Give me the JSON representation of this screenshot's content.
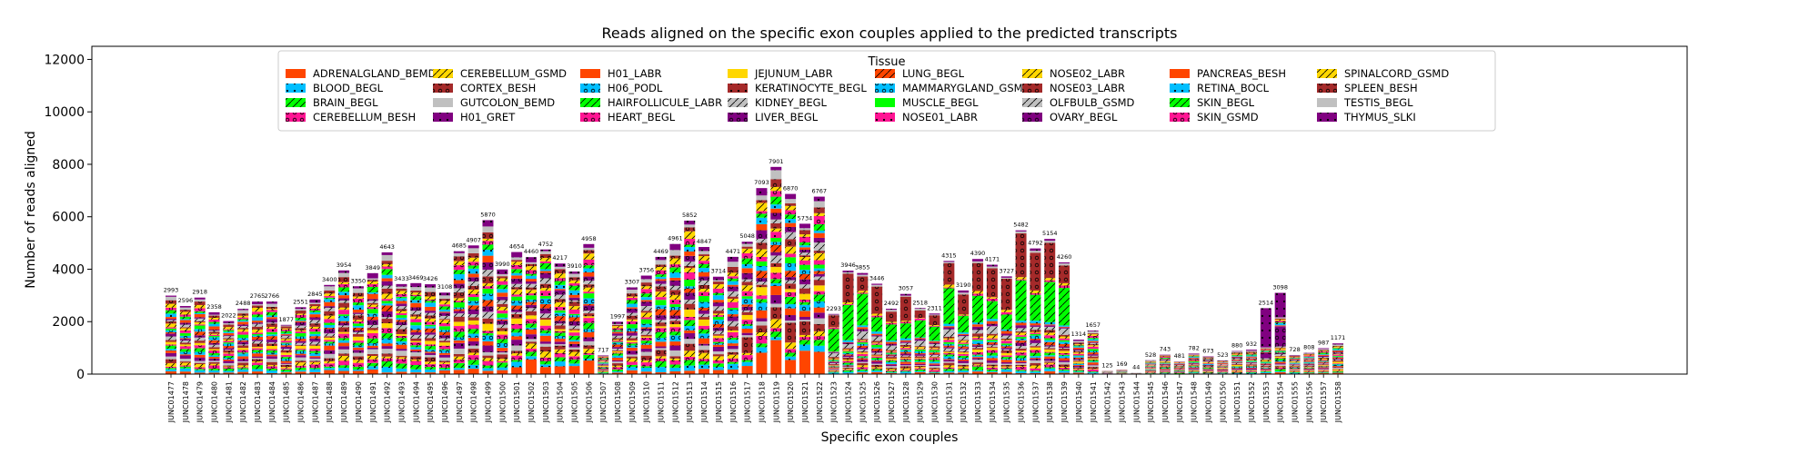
{
  "chart_data": {
    "type": "bar",
    "stacked": true,
    "title": "Reads aligned on the specific exon couples applied to the predicted transcripts",
    "xlabel": "Specific exon couples",
    "ylabel": "Number of reads aligned",
    "ylim": [
      0,
      12500
    ],
    "yticks": [
      0,
      2000,
      4000,
      6000,
      8000,
      10000,
      12000
    ],
    "legend_title": "Tissue",
    "legend_position": "top-center",
    "categories": [
      "JUNC01477",
      "JUNC01478",
      "JUNC01479",
      "JUNC01480",
      "JUNC01481",
      "JUNC01482",
      "JUNC01483",
      "JUNC01484",
      "JUNC01485",
      "JUNC01486",
      "JUNC01487",
      "JUNC01488",
      "JUNC01489",
      "JUNC01490",
      "JUNC01491",
      "JUNC01492",
      "JUNC01493",
      "JUNC01494",
      "JUNC01495",
      "JUNC01496",
      "JUNC01497",
      "JUNC01498",
      "JUNC01499",
      "JUNC01500",
      "JUNC01501",
      "JUNC01502",
      "JUNC01503",
      "JUNC01504",
      "JUNC01505",
      "JUNC01506",
      "JUNC01507",
      "JUNC01508",
      "JUNC01509",
      "JUNC01510",
      "JUNC01511",
      "JUNC01512",
      "JUNC01513",
      "JUNC01514",
      "JUNC01515",
      "JUNC01516",
      "JUNC01517",
      "JUNC01518",
      "JUNC01519",
      "JUNC01520",
      "JUNC01521",
      "JUNC01522",
      "JUNC01523",
      "JUNC01524",
      "JUNC01525",
      "JUNC01526",
      "JUNC01527",
      "JUNC01528",
      "JUNC01529",
      "JUNC01530",
      "JUNC01531",
      "JUNC01532",
      "JUNC01533",
      "JUNC01534",
      "JUNC01535",
      "JUNC01536",
      "JUNC01537",
      "JUNC01538",
      "JUNC01539",
      "JUNC01540",
      "JUNC01541",
      "JUNC01542",
      "JUNC01543",
      "JUNC01544",
      "JUNC01545",
      "JUNC01546",
      "JUNC01547",
      "JUNC01548",
      "JUNC01549",
      "JUNC01550",
      "JUNC01551",
      "JUNC01552",
      "JUNC01553",
      "JUNC01554",
      "JUNC01555",
      "JUNC01556",
      "JUNC01557",
      "JUNC01558"
    ],
    "totals": [
      2993,
      2596,
      2918,
      2358,
      2022,
      2488,
      2765,
      2766,
      1877,
      2551,
      2845,
      3400,
      3954,
      3350,
      3849,
      4643,
      3433,
      3469,
      3426,
      3108,
      4685,
      4907,
      5870,
      3990,
      4654,
      4460,
      4752,
      4217,
      3910,
      4958,
      717,
      1997,
      3307,
      3756,
      4469,
      4961,
      5852,
      4847,
      3714,
      4471,
      5048,
      7093,
      7901,
      6870,
      5734,
      6767,
      2293,
      3946,
      3855,
      3446,
      2492,
      3057,
      2518,
      2311,
      4315,
      3190,
      4390,
      4171,
      3727,
      5482,
      4792,
      5154,
      4260,
      1314,
      1657,
      125,
      169,
      44,
      528,
      743,
      481,
      782,
      673,
      523,
      880,
      932,
      2514,
      3098,
      728,
      808,
      987,
      1171
    ],
    "series": [
      {
        "name": "ADRENALGLAND_BEMD",
        "color": "#ff4500",
        "hatch": ""
      },
      {
        "name": "BLOOD_BEGL",
        "color": "#00bfff",
        "hatch": "dot"
      },
      {
        "name": "BRAIN_BEGL",
        "color": "#00ff00",
        "hatch": "slash"
      },
      {
        "name": "CEREBELLUM_BESH",
        "color": "#ff1493",
        "hatch": "ring"
      },
      {
        "name": "CEREBELLUM_GSMD",
        "color": "#ffd700",
        "hatch": "slash"
      },
      {
        "name": "CORTEX_BESH",
        "color": "#a52a2a",
        "hatch": "ring"
      },
      {
        "name": "GUTCOLON_BEMD",
        "color": "#c0c0c0",
        "hatch": ""
      },
      {
        "name": "H01_GRET",
        "color": "#800080",
        "hatch": "dot"
      },
      {
        "name": "H01_LABR",
        "color": "#ff4500",
        "hatch": ""
      },
      {
        "name": "H06_PODL",
        "color": "#00bfff",
        "hatch": "ring"
      },
      {
        "name": "HAIRFOLLICULE_LABR",
        "color": "#00ff00",
        "hatch": "slash"
      },
      {
        "name": "HEART_BEGL",
        "color": "#ff1493",
        "hatch": "ring"
      },
      {
        "name": "JEJUNUM_LABR",
        "color": "#ffd700",
        "hatch": ""
      },
      {
        "name": "KERATINOCYTE_BEGL",
        "color": "#a52a2a",
        "hatch": "dot"
      },
      {
        "name": "KIDNEY_BEGL",
        "color": "#c0c0c0",
        "hatch": "slash"
      },
      {
        "name": "LIVER_BEGL",
        "color": "#800080",
        "hatch": "ring"
      },
      {
        "name": "LUNG_BEGL",
        "color": "#ff4500",
        "hatch": "slash"
      },
      {
        "name": "MAMMARYGLAND_GSMD",
        "color": "#00bfff",
        "hatch": "ring"
      },
      {
        "name": "MUSCLE_BEGL",
        "color": "#00ff00",
        "hatch": ""
      },
      {
        "name": "NOSE01_LABR",
        "color": "#ff1493",
        "hatch": "dot"
      },
      {
        "name": "NOSE02_LABR",
        "color": "#ffd700",
        "hatch": "slash"
      },
      {
        "name": "NOSE03_LABR",
        "color": "#a52a2a",
        "hatch": "ring"
      },
      {
        "name": "OLFBULB_GSMD",
        "color": "#c0c0c0",
        "hatch": "slash"
      },
      {
        "name": "OVARY_BEGL",
        "color": "#800080",
        "hatch": "ring"
      },
      {
        "name": "PANCREAS_BESH",
        "color": "#ff4500",
        "hatch": ""
      },
      {
        "name": "RETINA_BOCL",
        "color": "#00bfff",
        "hatch": "dot"
      },
      {
        "name": "SKIN_BEGL",
        "color": "#00ff00",
        "hatch": "slash"
      },
      {
        "name": "SKIN_GSMD",
        "color": "#ff1493",
        "hatch": "ring"
      },
      {
        "name": "SPINALCORD_GSMD",
        "color": "#ffd700",
        "hatch": "slash"
      },
      {
        "name": "SPLEEN_BESH",
        "color": "#a52a2a",
        "hatch": "ring"
      },
      {
        "name": "TESTIS_BEGL",
        "color": "#c0c0c0",
        "hatch": ""
      },
      {
        "name": "THYMUS_SLKI",
        "color": "#800080",
        "hatch": "dot"
      }
    ]
  }
}
